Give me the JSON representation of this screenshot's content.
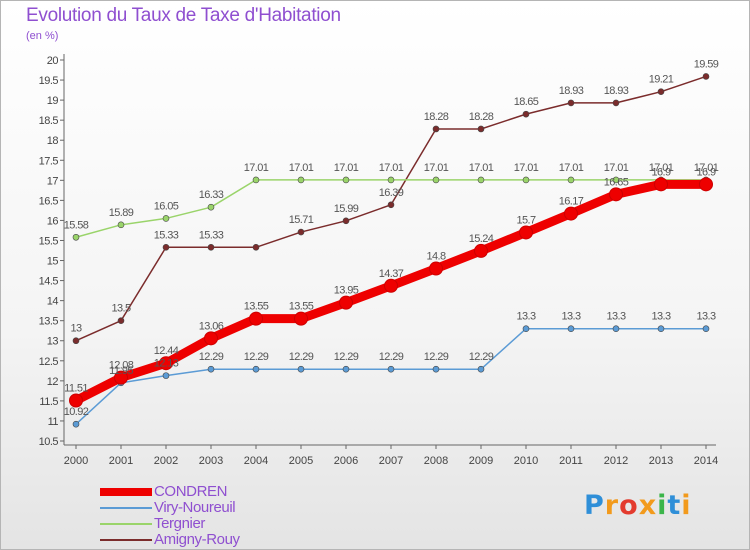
{
  "title": "Evolution du Taux de Taxe d'Habitation",
  "subtitle": "(en %)",
  "logo": {
    "letters": [
      "P",
      "r",
      "o",
      "x",
      "i",
      "t",
      "i"
    ],
    "colors": [
      "#2f8fd8",
      "#f29a1c",
      "#e33b2e",
      "#f29a1c",
      "#3bb54a",
      "#2f8fd8",
      "#f29a1c"
    ]
  },
  "chart_data": {
    "type": "line",
    "x": [
      "2000",
      "2001",
      "2002",
      "2003",
      "2004",
      "2005",
      "2006",
      "2007",
      "2008",
      "2009",
      "2010",
      "2011",
      "2012",
      "2013",
      "2014"
    ],
    "yticks": [
      "10.5",
      "11",
      "11.5",
      "12",
      "12.5",
      "13",
      "13.5",
      "14",
      "14.5",
      "15",
      "15.5",
      "16",
      "16.5",
      "17",
      "17.5",
      "18",
      "18.5",
      "19",
      "19.5",
      "20"
    ],
    "ylim": [
      10.5,
      20
    ],
    "grid": false,
    "legend_position": "bottom-left",
    "series": [
      {
        "name": "CONDREN",
        "color": "#ee0000",
        "width": 9,
        "values": [
          11.51,
          12.08,
          12.44,
          13.06,
          13.55,
          13.55,
          13.95,
          14.37,
          14.8,
          15.24,
          15.7,
          16.17,
          16.65,
          16.9,
          16.9
        ],
        "labels": [
          "11.51",
          "12.08",
          "12.44",
          "13.06",
          "13.55",
          "13.55",
          "13.95",
          "14.37",
          "14.8",
          "15.24",
          "15.7",
          "16.17",
          "16.65",
          "16.9",
          "16.9"
        ],
        "show_labels": [
          true,
          true,
          true,
          true,
          true,
          true,
          true,
          true,
          true,
          true,
          true,
          true,
          true,
          true,
          true
        ]
      },
      {
        "name": "Viry-Noureuil",
        "color": "#5b9bd5",
        "width": 1.5,
        "values": [
          10.92,
          11.95,
          12.13,
          12.29,
          12.29,
          12.29,
          12.29,
          12.29,
          12.29,
          12.29,
          13.3,
          13.3,
          13.3,
          13.3,
          13.3
        ],
        "labels": [
          "10.92",
          "11.95",
          "12.13",
          "12.29",
          "12.29",
          "12.29",
          "12.29",
          "12.29",
          "12.29",
          "12.29",
          "13.3",
          "13.3",
          "13.3",
          "13.3",
          "13.3"
        ],
        "show_labels": [
          true,
          true,
          true,
          true,
          true,
          true,
          true,
          true,
          true,
          true,
          true,
          true,
          true,
          true,
          true
        ]
      },
      {
        "name": "Tergnier",
        "color": "#9ad46a",
        "width": 1.5,
        "values": [
          15.58,
          15.89,
          16.05,
          16.33,
          17.01,
          17.01,
          17.01,
          17.01,
          17.01,
          17.01,
          17.01,
          17.01,
          17.01,
          17.01,
          17.01
        ],
        "labels": [
          "15.58",
          "15.89",
          "16.05",
          "16.33",
          "17.01",
          "17.01",
          "17.01",
          "17.01",
          "17.01",
          "17.01",
          "17.01",
          "17.01",
          "17.01",
          "17.01",
          "17.01"
        ],
        "show_labels": [
          true,
          true,
          true,
          true,
          true,
          true,
          true,
          true,
          true,
          true,
          true,
          true,
          true,
          true,
          true
        ]
      },
      {
        "name": "Amigny-Rouy",
        "color": "#7b2c2c",
        "width": 1.5,
        "values": [
          13,
          13.5,
          15.33,
          15.33,
          15.33,
          15.71,
          15.99,
          16.39,
          18.28,
          18.28,
          18.65,
          18.93,
          18.93,
          19.21,
          19.59
        ],
        "labels": [
          "13",
          "13.5",
          "15.33",
          "15.33",
          "15.33",
          "15.71",
          "15.99",
          "16.39",
          "18.28",
          "18.28",
          "18.65",
          "18.93",
          "18.93",
          "19.21",
          "19.59"
        ],
        "show_labels": [
          true,
          true,
          true,
          true,
          false,
          true,
          true,
          true,
          true,
          true,
          true,
          true,
          true,
          true,
          true
        ]
      }
    ]
  }
}
